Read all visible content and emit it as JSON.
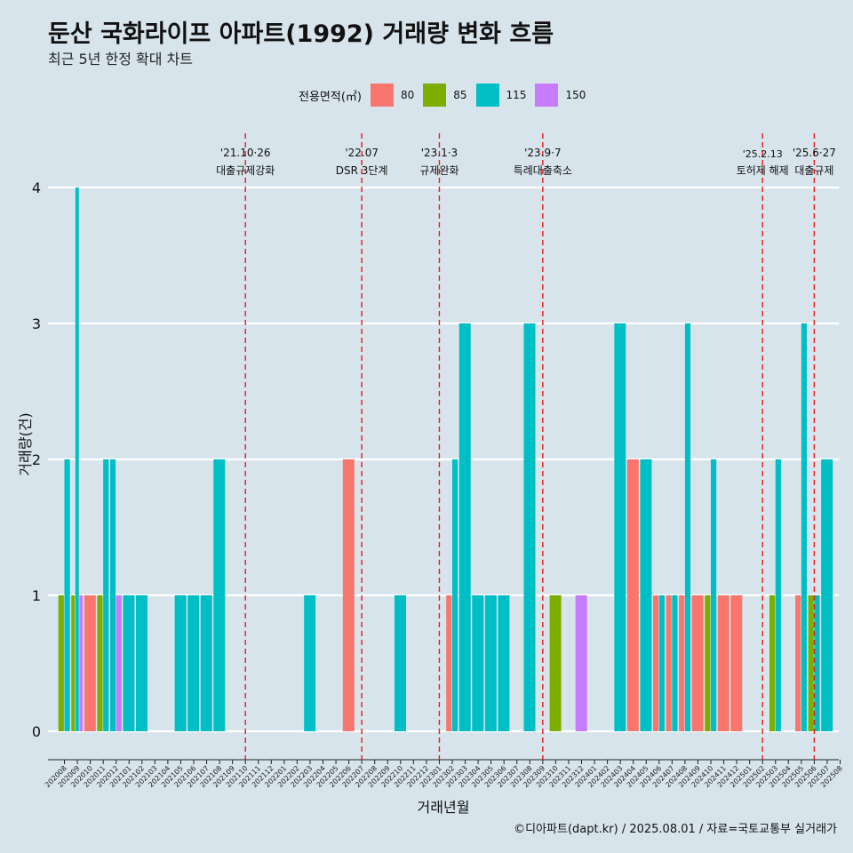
{
  "header": {
    "title": "둔산 국화라이프 아파트(1992) 거래량 변화 흐름",
    "subtitle": "최근 5년 한정 확대 차트"
  },
  "footer": {
    "credit": "©디아파트(dapt.kr) / 2025.08.01 / 자료=국토교통부 실거래가"
  },
  "legend": {
    "title": "전용면적(㎡)",
    "items": [
      {
        "label": "80",
        "color": "#f8766d"
      },
      {
        "label": "85",
        "color": "#7cae00"
      },
      {
        "label": "115",
        "color": "#00bfc4"
      },
      {
        "label": "150",
        "color": "#c77cff"
      }
    ]
  },
  "chart_data": {
    "type": "bar",
    "title": "둔산 국화라이프 아파트(1992) 거래량 변화 흐름",
    "subtitle": "최근 5년 한정 확대 차트",
    "xlabel": "거래년월",
    "ylabel": "거래량(건)",
    "ylim": [
      0,
      4
    ],
    "yticks": [
      0,
      1,
      2,
      3,
      4
    ],
    "grid": "horizontal",
    "legend_position": "top",
    "categories": [
      "202008",
      "202009",
      "202010",
      "202011",
      "202012",
      "202101",
      "202102",
      "202103",
      "202104",
      "202105",
      "202106",
      "202107",
      "202108",
      "202109",
      "202110",
      "202111",
      "202112",
      "202201",
      "202202",
      "202203",
      "202204",
      "202205",
      "202206",
      "202207",
      "202208",
      "202209",
      "202210",
      "202211",
      "202212",
      "202301",
      "202302",
      "202303",
      "202304",
      "202305",
      "202306",
      "202307",
      "202308",
      "202309",
      "202310",
      "202311",
      "202312",
      "202401",
      "202402",
      "202403",
      "202404",
      "202405",
      "202406",
      "202407",
      "202408",
      "202409",
      "202410",
      "202411",
      "202412",
      "202501",
      "202502",
      "202503",
      "202504",
      "202505",
      "202506",
      "202507",
      "202508"
    ],
    "series": [
      {
        "name": "80",
        "color": "#f8766d",
        "values": [
          0,
          0,
          1,
          0,
          0,
          0,
          0,
          0,
          0,
          0,
          0,
          0,
          0,
          0,
          0,
          0,
          0,
          0,
          0,
          0,
          0,
          0,
          2,
          0,
          0,
          0,
          0,
          0,
          0,
          0,
          1,
          0,
          0,
          0,
          0,
          0,
          0,
          0,
          0,
          0,
          0,
          0,
          0,
          0,
          2,
          0,
          1,
          1,
          1,
          1,
          0,
          1,
          1,
          0,
          0,
          0,
          0,
          1,
          0,
          0,
          0
        ]
      },
      {
        "name": "85",
        "color": "#7cae00",
        "values": [
          1,
          1,
          0,
          1,
          0,
          0,
          0,
          0,
          0,
          0,
          0,
          0,
          0,
          0,
          0,
          0,
          0,
          0,
          0,
          0,
          0,
          0,
          0,
          0,
          0,
          0,
          0,
          0,
          0,
          0,
          0,
          0,
          0,
          0,
          0,
          0,
          0,
          0,
          1,
          0,
          0,
          0,
          0,
          0,
          0,
          0,
          0,
          0,
          0,
          0,
          1,
          0,
          0,
          0,
          0,
          1,
          0,
          0,
          1,
          0,
          0
        ]
      },
      {
        "name": "115",
        "color": "#00bfc4",
        "values": [
          2,
          4,
          0,
          2,
          2,
          1,
          1,
          0,
          0,
          1,
          1,
          1,
          2,
          0,
          0,
          0,
          0,
          0,
          0,
          1,
          0,
          0,
          0,
          0,
          0,
          0,
          1,
          0,
          0,
          0,
          2,
          3,
          1,
          1,
          1,
          0,
          3,
          0,
          0,
          0,
          0,
          0,
          0,
          3,
          0,
          2,
          1,
          1,
          3,
          0,
          2,
          0,
          0,
          0,
          0,
          2,
          0,
          3,
          1,
          2,
          0
        ]
      },
      {
        "name": "150",
        "color": "#c77cff",
        "values": [
          0,
          1,
          0,
          0,
          1,
          0,
          0,
          0,
          0,
          0,
          0,
          0,
          0,
          0,
          0,
          0,
          0,
          0,
          0,
          0,
          0,
          0,
          0,
          0,
          0,
          0,
          0,
          0,
          0,
          0,
          0,
          0,
          0,
          0,
          0,
          0,
          0,
          0,
          0,
          0,
          1,
          0,
          0,
          0,
          0,
          0,
          0,
          0,
          0,
          0,
          0,
          0,
          0,
          0,
          0,
          0,
          0,
          0,
          0,
          0,
          0
        ]
      }
    ],
    "events": [
      {
        "month": "202110",
        "date": "'21.10·26",
        "label": "대출규제강화"
      },
      {
        "month": "202207",
        "date": "'22.07",
        "label": "DSR 3단계"
      },
      {
        "month": "202301",
        "date": "'23.1·3",
        "label": "규제완화"
      },
      {
        "month": "202309",
        "date": "'23.9·7",
        "label": "특례대출축소"
      },
      {
        "month": "202502",
        "date": "'25.2.13",
        "label": "토허제 해제"
      },
      {
        "month": "202506",
        "date": "'25.6·27",
        "label": "대출규제"
      }
    ]
  }
}
